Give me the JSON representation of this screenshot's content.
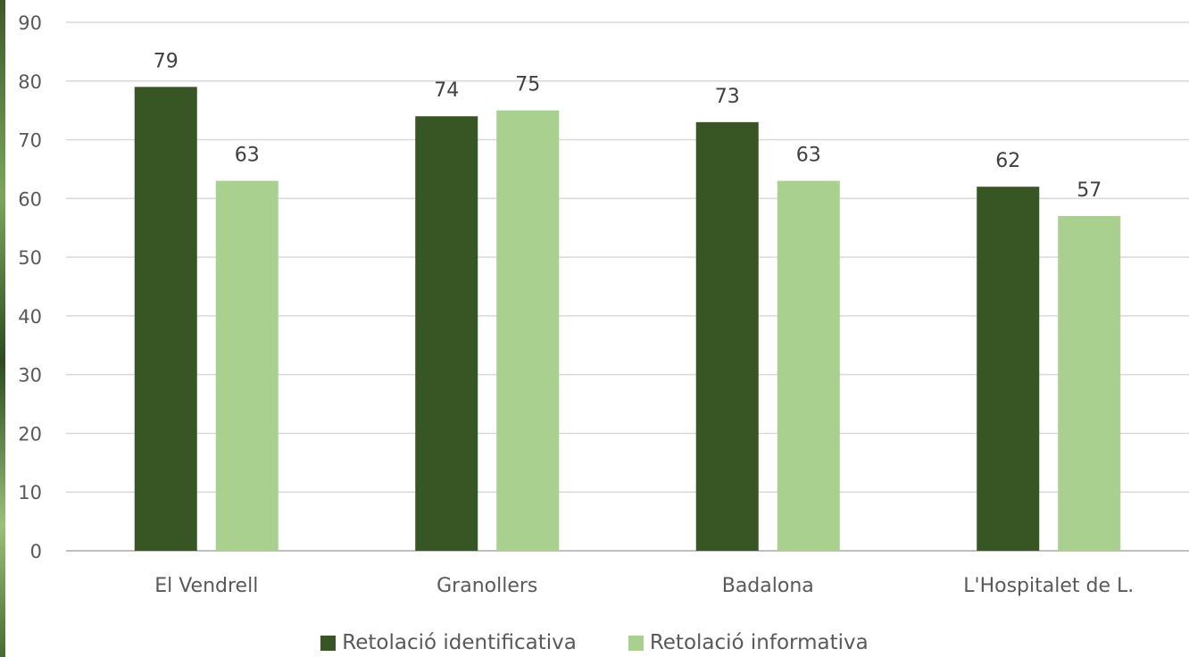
{
  "chart_data": {
    "type": "bar",
    "title": "",
    "xlabel": "",
    "ylabel": "",
    "ylim": [
      0,
      90
    ],
    "y_ticks": [
      "0",
      "10",
      "20",
      "30",
      "40",
      "50",
      "60",
      "70",
      "80",
      "90"
    ],
    "categories": [
      "El Vendrell",
      "Granollers",
      "Badalona",
      "L'Hospitalet de L."
    ],
    "series": [
      {
        "name": "Retolació identificativa",
        "color": "#375623",
        "values": [
          79,
          74,
          73,
          62
        ]
      },
      {
        "name": "Retolació informativa",
        "color": "#a9d08e",
        "values": [
          63,
          75,
          63,
          57
        ]
      }
    ],
    "grid": true,
    "legend_position": "bottom"
  }
}
